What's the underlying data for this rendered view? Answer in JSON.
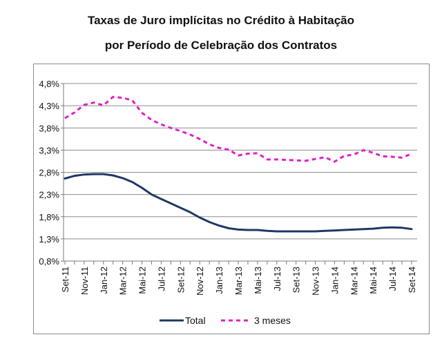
{
  "chart_data": {
    "type": "line",
    "title_line1": "Taxas de Juro implícitas no Crédito à Habitação",
    "title_line2": "por Período de Celebração dos Contratos",
    "xlabel": "",
    "ylabel": "",
    "ylim": [
      0.8,
      4.8
    ],
    "yticks": [
      "0,8%",
      "1,3%",
      "1,8%",
      "2,3%",
      "2,8%",
      "3,3%",
      "3,8%",
      "4,3%",
      "4,8%"
    ],
    "ytick_values": [
      0.8,
      1.3,
      1.8,
      2.3,
      2.8,
      3.3,
      3.8,
      4.3,
      4.8
    ],
    "xticks": [
      "Set-11",
      "Nov-11",
      "Jan-12",
      "Mar-12",
      "Mai-12",
      "Jul-12",
      "Set-12",
      "Nov-12",
      "Jan-13",
      "Mar-13",
      "Mai-13",
      "Jul-13",
      "Set-13",
      "Nov-13",
      "Jan-14",
      "Mar-14",
      "Mai-14",
      "Jul-14",
      "Set-14"
    ],
    "grid": true,
    "series": [
      {
        "name": "Total",
        "color": "#1f3864",
        "style": "solid",
        "values": [
          2.66,
          2.72,
          2.75,
          2.76,
          2.76,
          2.73,
          2.67,
          2.58,
          2.45,
          2.3,
          2.2,
          2.1,
          2.0,
          1.9,
          1.78,
          1.68,
          1.6,
          1.54,
          1.51,
          1.5,
          1.5,
          1.48,
          1.47,
          1.47,
          1.47,
          1.47,
          1.47,
          1.48,
          1.49,
          1.5,
          1.51,
          1.52,
          1.53,
          1.55,
          1.56,
          1.55,
          1.52
        ]
      },
      {
        "name": "3 meses",
        "color": "#e020c8",
        "style": "dashed",
        "values": [
          4.02,
          4.15,
          4.32,
          4.37,
          4.31,
          4.5,
          4.48,
          4.42,
          4.14,
          3.98,
          3.88,
          3.8,
          3.73,
          3.65,
          3.55,
          3.43,
          3.35,
          3.31,
          3.18,
          3.22,
          3.23,
          3.09,
          3.09,
          3.08,
          3.07,
          3.06,
          3.1,
          3.14,
          3.04,
          3.17,
          3.2,
          3.3,
          3.24,
          3.16,
          3.15,
          3.13,
          3.22
        ]
      }
    ],
    "legend_position": "bottom"
  }
}
